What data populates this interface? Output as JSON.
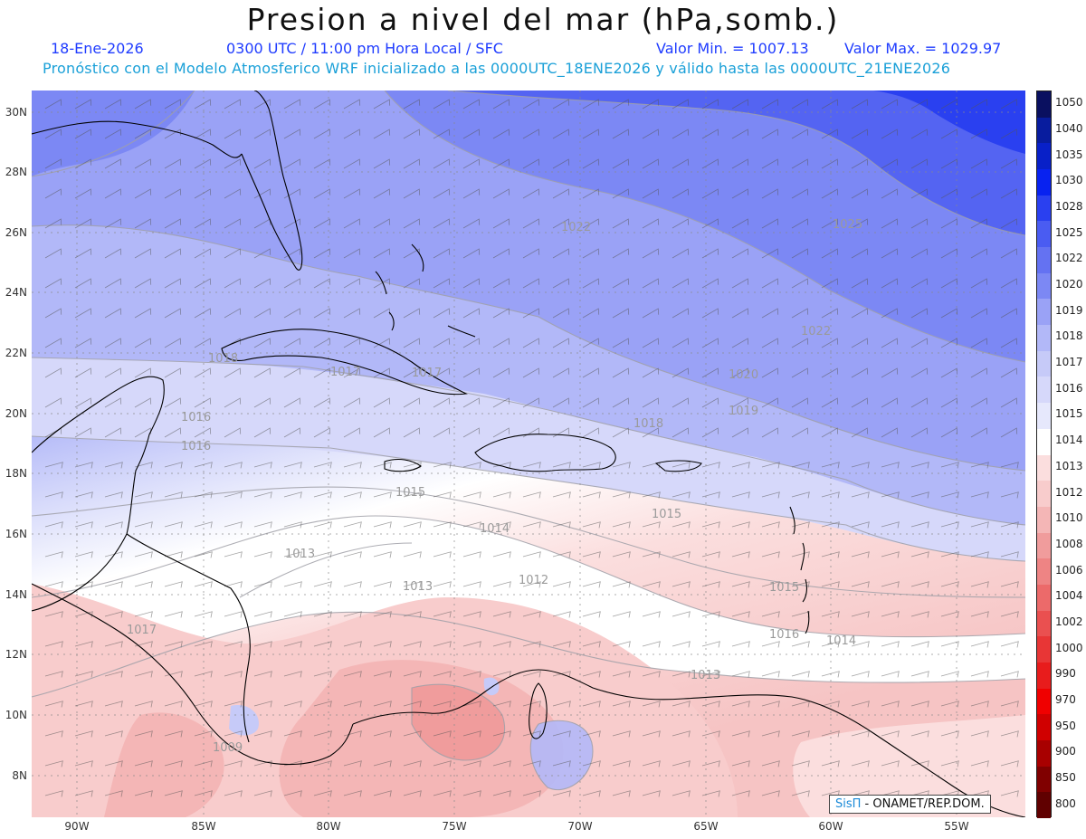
{
  "title": "Presion a nivel del mar (hPa,somb.)",
  "date": "18-Ene-2026",
  "time_info": "0300 UTC / 11:00 pm Hora Local / SFC",
  "min_label": "Valor Min. = 1007.13",
  "max_label": "Valor Max. = 1029.97",
  "forecast_text": "Pronóstico con el Modelo Atmosferico WRF inicializado a las 0000UTC_18ENE2026 y válido hasta las  0000UTC_21ENE2026",
  "lat_labels": [
    "30N",
    "28N",
    "26N",
    "24N",
    "22N",
    "20N",
    "18N",
    "16N",
    "14N",
    "12N",
    "10N",
    "8N"
  ],
  "lon_labels": [
    "90W",
    "85W",
    "80W",
    "75W",
    "70W",
    "65W",
    "60W",
    "55W"
  ],
  "colorbar": {
    "levels": [
      "1050",
      "1040",
      "1035",
      "1030",
      "1028",
      "1025",
      "1022",
      "1020",
      "1019",
      "1018",
      "1017",
      "1016",
      "1015",
      "1014",
      "1013",
      "1012",
      "1010",
      "1008",
      "1006",
      "1004",
      "1002",
      "1000",
      "990",
      "970",
      "950",
      "900",
      "850",
      "800"
    ],
    "colors": [
      "#0a1060",
      "#081c9e",
      "#0820c8",
      "#0822f0",
      "#2a40f0",
      "#4a5cf2",
      "#6472f2",
      "#7c88f4",
      "#9aa2f6",
      "#b2b8f8",
      "#c6caf8",
      "#d6d8fa",
      "#e6e8fc",
      "#ffffff",
      "#fbdede",
      "#f8cccc",
      "#f4b6b6",
      "#f09c9c",
      "#ee8484",
      "#ec6a6a",
      "#ea5050",
      "#e83636",
      "#e81c1c",
      "#f00000",
      "#d00000",
      "#a80000",
      "#800000",
      "#600000"
    ]
  },
  "contour_labels": [
    "1022",
    "1025",
    "1022",
    "1020",
    "1019",
    "1018",
    "1017",
    "1016",
    "1016",
    "1015",
    "1014",
    "1013",
    "1013",
    "1012",
    "1015",
    "1015",
    "1016",
    "1014",
    "1013",
    "1017",
    "1018",
    "1017",
    "1009"
  ],
  "credit": {
    "brand": "SisΠ",
    "text": " - ONAMET/REP.DOM."
  }
}
